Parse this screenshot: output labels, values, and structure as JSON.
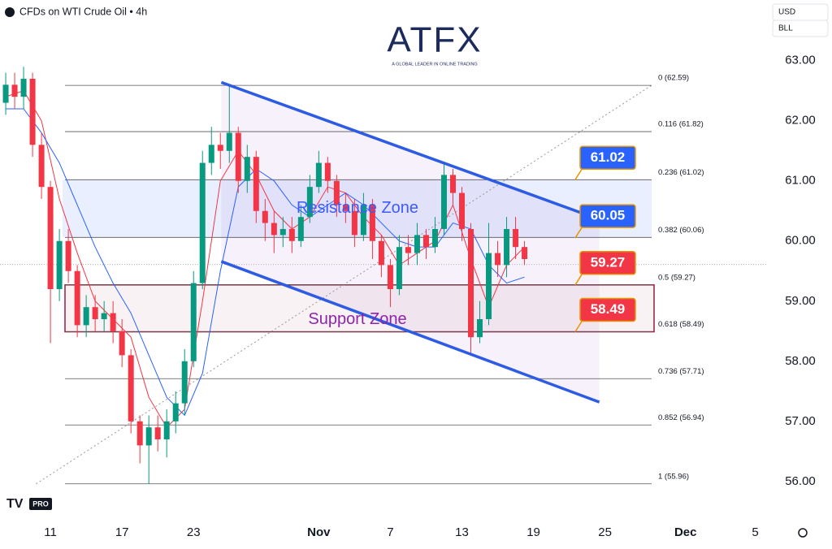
{
  "chart_data": {
    "type": "candlestick",
    "title": "CFDs on WTI Crude Oil • 4h",
    "logo": "ATFX",
    "logo_tagline": "A GLOBAL LEADER IN ONLINE TRADING",
    "currency": "USD",
    "unit": "BLL",
    "badge": "PRO",
    "xlim": [
      -2.82,
      40.1
    ],
    "ylim": [
      55.43,
      64.01
    ],
    "xticks": [
      {
        "value": 0,
        "label": "11"
      },
      {
        "value": 4,
        "label": "17"
      },
      {
        "value": 8,
        "label": "23"
      },
      {
        "value": 15,
        "label": "Nov"
      },
      {
        "value": 19,
        "label": "7"
      },
      {
        "value": 23,
        "label": "13"
      },
      {
        "value": 27,
        "label": "19"
      },
      {
        "value": 31,
        "label": "25"
      },
      {
        "value": 35.5,
        "label": "Dec"
      },
      {
        "value": 39.4,
        "label": "5"
      }
    ],
    "yticks": [
      {
        "value": 56,
        "label": "56.00"
      },
      {
        "value": 57,
        "label": "57.00"
      },
      {
        "value": 58,
        "label": "58.00"
      },
      {
        "value": 59,
        "label": "59.00"
      },
      {
        "value": 60,
        "label": "60.00"
      },
      {
        "value": 61,
        "label": "61.00"
      },
      {
        "value": 62,
        "label": "62.00"
      },
      {
        "value": 63,
        "label": "63.00"
      }
    ],
    "up_color": "#089981",
    "down_color": "#f23645",
    "x": [
      -2.5,
      -2,
      -1.5,
      -1,
      -0.5,
      0,
      0.5,
      1,
      1.5,
      2,
      2.5,
      3,
      3.5,
      4,
      4.5,
      5,
      5.5,
      6,
      6.5,
      7,
      7.5,
      8,
      8.5,
      9,
      9.5,
      10,
      10.5,
      11,
      11.5,
      12,
      12.5,
      13,
      13.5,
      14,
      14.5,
      15,
      15.5,
      16,
      16.5,
      17,
      17.5,
      18,
      18.5,
      19,
      19.5,
      20,
      20.5,
      21,
      21.5,
      22,
      22.5,
      23,
      23.5,
      24,
      24.5,
      25,
      25.5,
      26,
      26.5
    ],
    "open": [
      62.3,
      62.6,
      62.4,
      62.7,
      61.6,
      60.9,
      59.2,
      60.0,
      59.5,
      58.6,
      58.9,
      58.7,
      58.8,
      58.5,
      58.1,
      57.0,
      56.6,
      56.9,
      56.7,
      57.0,
      57.3,
      58.0,
      59.3,
      61.3,
      61.6,
      61.5,
      61.8,
      61.0,
      61.4,
      60.5,
      60.3,
      60.1,
      60.2,
      60.0,
      60.4,
      60.9,
      61.3,
      61.0,
      60.6,
      60.5,
      60.1,
      60.6,
      60.0,
      59.6,
      59.2,
      59.9,
      59.8,
      60.1,
      59.9,
      60.2,
      61.1,
      60.8,
      60.2,
      58.4,
      58.7,
      59.8,
      59.6,
      60.2,
      59.9
    ],
    "high": [
      62.8,
      62.8,
      62.9,
      62.8,
      61.8,
      61.0,
      60.2,
      60.2,
      59.6,
      59.1,
      59.1,
      59.0,
      59.0,
      58.7,
      58.2,
      57.1,
      57.1,
      57.1,
      57.2,
      57.5,
      58.2,
      59.5,
      61.5,
      61.9,
      61.8,
      62.6,
      61.9,
      61.6,
      61.5,
      60.7,
      60.5,
      60.4,
      60.4,
      60.6,
      61.1,
      61.5,
      61.4,
      61.1,
      60.8,
      60.7,
      60.8,
      60.7,
      60.1,
      59.7,
      60.1,
      60.1,
      60.3,
      60.2,
      60.4,
      61.3,
      61.2,
      60.9,
      60.3,
      59.0,
      60.3,
      60.0,
      60.4,
      60.4,
      60.0
    ],
    "low": [
      62.1,
      62.2,
      62.2,
      61.4,
      60.7,
      58.3,
      59.0,
      59.3,
      58.4,
      58.4,
      58.5,
      58.5,
      58.3,
      57.9,
      56.8,
      56.3,
      55.96,
      56.5,
      56.4,
      56.8,
      57.1,
      57.9,
      59.2,
      61.1,
      61.2,
      61.3,
      60.8,
      60.8,
      60.3,
      60.0,
      59.8,
      59.9,
      59.8,
      59.9,
      60.3,
      60.8,
      60.8,
      60.4,
      60.3,
      59.9,
      60.0,
      59.7,
      59.4,
      58.9,
      59.1,
      59.6,
      59.6,
      59.7,
      59.8,
      60.1,
      60.6,
      60.0,
      58.1,
      58.3,
      58.6,
      59.4,
      59.4,
      59.7,
      59.6
    ],
    "close": [
      62.6,
      62.4,
      62.7,
      61.6,
      60.9,
      59.2,
      60.0,
      59.5,
      58.6,
      58.9,
      58.7,
      58.8,
      58.5,
      58.1,
      57.0,
      56.6,
      56.9,
      56.7,
      57.0,
      57.3,
      58.0,
      59.3,
      61.3,
      61.6,
      61.5,
      61.8,
      61.0,
      61.4,
      60.5,
      60.3,
      60.1,
      60.2,
      60.0,
      60.4,
      60.9,
      61.3,
      61.0,
      60.6,
      60.5,
      60.1,
      60.6,
      60.0,
      59.6,
      59.2,
      59.9,
      59.8,
      60.1,
      59.9,
      60.2,
      61.1,
      60.8,
      60.2,
      58.4,
      58.7,
      59.8,
      59.6,
      60.2,
      59.9,
      59.7
    ],
    "moving_averages": [
      {
        "color": "#f23645",
        "x": [
          -2.5,
          -1.5,
          -0.5,
          0.5,
          1.5,
          2.5,
          3.5,
          4.5,
          5.5,
          6.5,
          7.5,
          8.5,
          9.5,
          10.5,
          11.5,
          12.5,
          13.5,
          14.5,
          15.5,
          16.5,
          17.5,
          18.5,
          19.5,
          20.5,
          21.5,
          22.5,
          23.5,
          24.5,
          25.5,
          26.5
        ],
        "values": [
          62.4,
          62.5,
          62.0,
          60.7,
          59.8,
          59.0,
          58.7,
          58.4,
          57.4,
          56.9,
          57.2,
          59.0,
          61.0,
          61.5,
          61.1,
          60.5,
          60.2,
          60.4,
          60.9,
          60.8,
          60.4,
          60.1,
          59.6,
          59.8,
          60.0,
          60.6,
          59.7,
          58.9,
          59.6,
          59.9
        ]
      },
      {
        "color": "#2962ff",
        "x": [
          -2.5,
          -1.5,
          -0.5,
          0.5,
          1.5,
          2.5,
          3.5,
          4.5,
          5.5,
          6.5,
          7.5,
          8.5,
          9.5,
          10.5,
          11.5,
          12.5,
          13.5,
          14.5,
          15.5,
          16.5,
          17.5,
          18.5,
          19.5,
          20.5,
          21.5,
          22.5,
          23.5,
          24.5,
          25.5,
          26.5
        ],
        "values": [
          62.2,
          62.2,
          61.8,
          61.3,
          60.6,
          59.9,
          59.3,
          58.8,
          58.1,
          57.4,
          57.1,
          57.8,
          59.5,
          60.9,
          61.2,
          61.0,
          60.6,
          60.4,
          60.6,
          60.8,
          60.6,
          60.3,
          60.0,
          59.9,
          59.9,
          60.3,
          60.2,
          59.6,
          59.3,
          59.4
        ]
      }
    ],
    "fib_levels": [
      {
        "label": "0 (62.59)",
        "value": 62.59
      },
      {
        "label": "0.116 (61.82)",
        "value": 61.82
      },
      {
        "label": "0.236 (61.02)",
        "value": 61.02
      },
      {
        "label": "0.382 (60.06)",
        "value": 60.06
      },
      {
        "label": "0.5 (59.27)",
        "value": 59.27
      },
      {
        "label": "0.618 (58.49)",
        "value": 58.49
      },
      {
        "label": "0.736 (57.71)",
        "value": 57.71
      },
      {
        "label": "0.852 (56.94)",
        "value": 56.94
      },
      {
        "label": "1 (55.96)",
        "value": 55.96
      }
    ],
    "zones": [
      {
        "label": "Resistance Zone",
        "top": 61.02,
        "bottom": 60.06,
        "color": "#2962ff"
      },
      {
        "label": "Support Zone",
        "top": 59.27,
        "bottom": 58.49,
        "color": "#9c1c3c"
      }
    ],
    "channel": [
      {
        "x": [
          9.55,
          30.68
        ],
        "values": [
          62.64,
          60.36
        ]
      },
      {
        "x": [
          9.55,
          30.68
        ],
        "values": [
          59.66,
          57.32
        ]
      }
    ],
    "trend_line": {
      "x": [
        -0.8,
        33.6
      ],
      "values": [
        55.96,
        62.59
      ]
    },
    "last_price": 59.61,
    "price_tags": [
      {
        "value": 61.02,
        "color": "#2962ff"
      },
      {
        "value": 60.05,
        "color": "#2962ff"
      },
      {
        "value": 59.27,
        "color": "#f23645"
      },
      {
        "value": 58.49,
        "color": "#f23645"
      }
    ]
  }
}
